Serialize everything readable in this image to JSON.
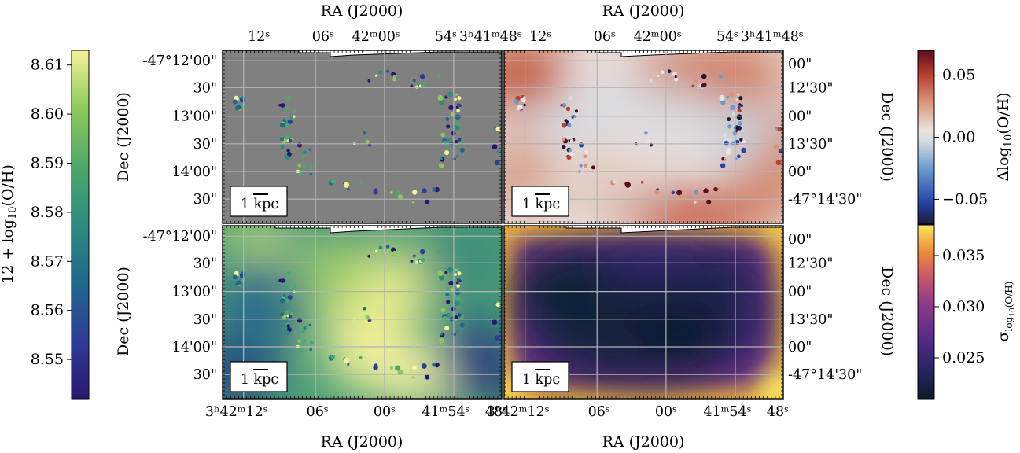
{
  "chart_data": [
    {
      "type": "heatmap",
      "panel": "top-left",
      "content": "HII region metallicity points on grey background",
      "xlabel": "RA (J2000)",
      "ylabel": "Dec (J2000)",
      "ra_ticks": [
        "12ˢ",
        "06ˢ",
        "42ᵐ00ˢ",
        "54ˢ",
        "3ʰ41ᵐ48ˢ"
      ],
      "dec_ticks": [
        "-47°12'00\"",
        "30\"",
        "13'00\"",
        "30\"",
        "14'00\"",
        "30\""
      ],
      "scalebar": "1 kpc",
      "colorbar": "metallicity"
    },
    {
      "type": "heatmap",
      "panel": "top-right",
      "content": "Residual metallicity map",
      "xlabel": "RA (J2000)",
      "ylabel": "Dec (J2000)",
      "ra_ticks": [
        "12ˢ",
        "06ˢ",
        "42ᵐ00ˢ",
        "54ˢ",
        "3ʰ41ᵐ48ˢ"
      ],
      "dec_ticks": [
        "00\"",
        "12'30\"",
        "00\"",
        "13'30\"",
        "00\"",
        "-47°14'30\""
      ],
      "scalebar": "1 kpc",
      "colorbar": "residual"
    },
    {
      "type": "heatmap",
      "panel": "bottom-left",
      "content": "Model metallicity map with HII regions overlaid",
      "xlabel": "RA (J2000)",
      "ylabel": "Dec (J2000)",
      "ra_ticks": [
        "3ʰ42ᵐ12ˢ",
        "06ˢ",
        "00ˢ",
        "41ᵐ54ˢ",
        "48ˢ"
      ],
      "dec_ticks": [
        "-47°12'00\"",
        "30\"",
        "13'00\"",
        "30\"",
        "14'00\"",
        "30\""
      ],
      "scalebar": "1 kpc",
      "colorbar": "metallicity"
    },
    {
      "type": "heatmap",
      "panel": "bottom-right",
      "content": "Model uncertainty map",
      "xlabel": "RA (J2000)",
      "ylabel": "Dec (J2000)",
      "ra_ticks": [
        "3ʰ42ᵐ12ˢ",
        "06ˢ",
        "00ˢ",
        "41ᵐ54ˢ",
        "48ˢ"
      ],
      "dec_ticks": [
        "00\"",
        "12'30\"",
        "00\"",
        "13'30\"",
        "00\"",
        "-47°14'30\""
      ],
      "scalebar": "1 kpc",
      "colorbar": "uncertainty"
    }
  ],
  "colorbars": {
    "metallicity": {
      "label": "12 + log10(O/H)",
      "range": [
        8.542,
        8.613
      ],
      "ticks": [
        "8.61",
        "8.60",
        "8.59",
        "8.58",
        "8.57",
        "8.56",
        "8.55"
      ],
      "tick_values": [
        8.61,
        8.6,
        8.59,
        8.58,
        8.57,
        8.56,
        8.55
      ],
      "colormap": "haline",
      "colors": [
        "#2a1870",
        "#2d3d98",
        "#1f6a8c",
        "#2d8c80",
        "#4aa86a",
        "#8cc85a",
        "#f5f29a"
      ]
    },
    "residual": {
      "label": "Δlog10(O/H)",
      "range": [
        -0.07,
        0.07
      ],
      "ticks": [
        "0.05",
        "0.00",
        "−0.05"
      ],
      "tick_values": [
        0.05,
        0.0,
        -0.05
      ],
      "colormap": "balance",
      "colors": [
        "#1c1a3a",
        "#2446a8",
        "#6a9cd0",
        "#d6dce3",
        "#ebe3df",
        "#d9957a",
        "#b8402e",
        "#5c0c1e"
      ]
    },
    "uncertainty": {
      "label": "σlog10(O/H)",
      "range": [
        0.021,
        0.038
      ],
      "ticks": [
        "0.035",
        "0.030",
        "0.025"
      ],
      "tick_values": [
        0.035,
        0.03,
        0.025
      ],
      "colormap": "thermal",
      "colors": [
        "#0a1d2c",
        "#2b2466",
        "#5a2c8a",
        "#8b3a8a",
        "#c9576a",
        "#ee8e3a",
        "#f7e85c"
      ]
    }
  }
}
